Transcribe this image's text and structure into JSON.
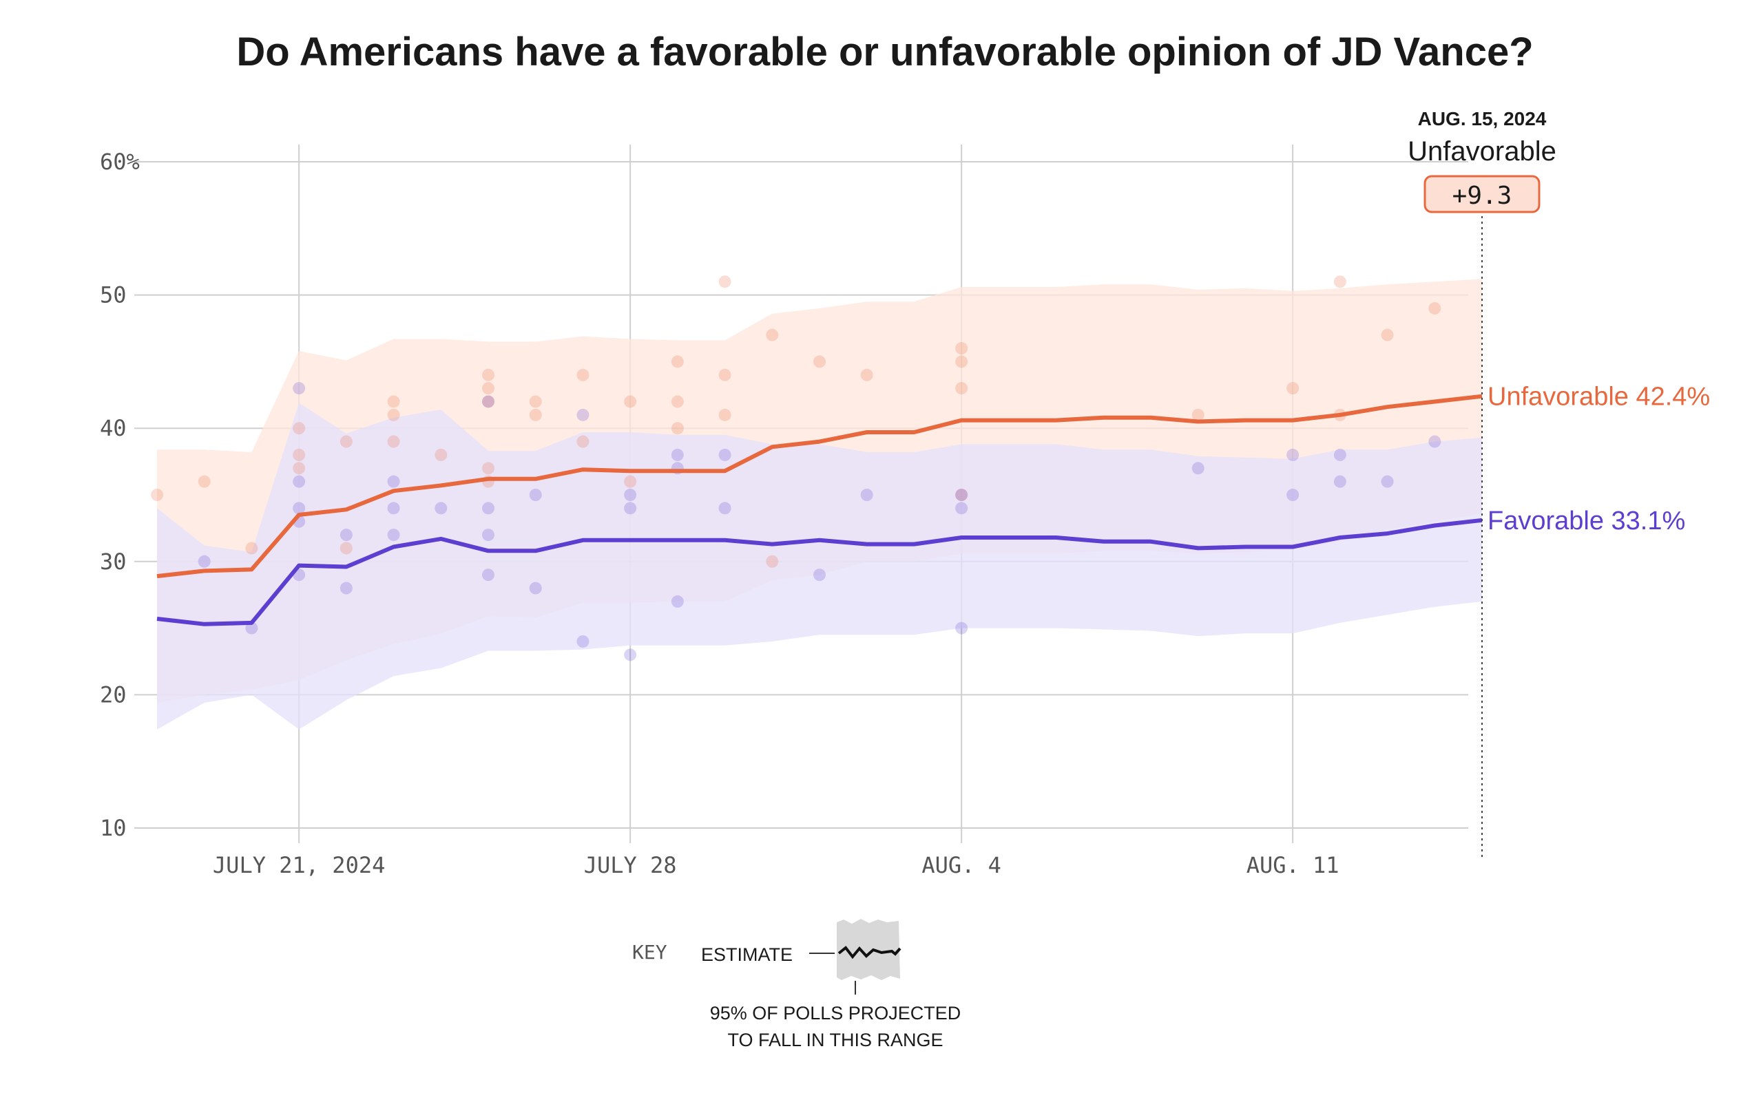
{
  "chart_data": {
    "type": "line",
    "title": "Do Americans have a favorable or unfavorable opinion of JD Vance?",
    "xlabel": "",
    "ylabel": "",
    "y_unit": "%",
    "ylim": [
      10,
      60
    ],
    "yticks": [
      {
        "value": 60,
        "label": "60%"
      },
      {
        "value": 50,
        "label": "50"
      },
      {
        "value": 40,
        "label": "40"
      },
      {
        "value": 30,
        "label": "30"
      },
      {
        "value": 20,
        "label": "20"
      },
      {
        "value": 10,
        "label": "10"
      }
    ],
    "xlim": [
      "2024-07-18",
      "2024-08-15"
    ],
    "xticks": [
      {
        "date": "2024-07-21",
        "label": "JULY 21, 2024"
      },
      {
        "date": "2024-07-28",
        "label": "JULY 28"
      },
      {
        "date": "2024-08-04",
        "label": "AUG. 4"
      },
      {
        "date": "2024-08-11",
        "label": "AUG. 11"
      }
    ],
    "grid": true,
    "x": [
      "2024-07-18",
      "2024-07-19",
      "2024-07-20",
      "2024-07-21",
      "2024-07-22",
      "2024-07-23",
      "2024-07-24",
      "2024-07-25",
      "2024-07-26",
      "2024-07-27",
      "2024-07-28",
      "2024-07-29",
      "2024-07-30",
      "2024-07-31",
      "2024-08-01",
      "2024-08-02",
      "2024-08-03",
      "2024-08-04",
      "2024-08-05",
      "2024-08-06",
      "2024-08-07",
      "2024-08-08",
      "2024-08-09",
      "2024-08-10",
      "2024-08-11",
      "2024-08-12",
      "2024-08-13",
      "2024-08-14",
      "2024-08-15"
    ],
    "series": [
      {
        "name": "Unfavorable",
        "color": "#e8683e",
        "band_color": "#fde5dc",
        "estimate": [
          28.9,
          29.3,
          29.4,
          33.5,
          33.9,
          35.3,
          35.7,
          36.2,
          36.2,
          36.9,
          36.8,
          36.8,
          36.8,
          38.6,
          39.0,
          39.7,
          39.7,
          40.6,
          40.6,
          40.6,
          40.8,
          40.8,
          40.5,
          40.6,
          40.6,
          41.0,
          41.6,
          42.0,
          42.4
        ],
        "band_upper": [
          38.4,
          38.4,
          38.2,
          45.8,
          45.1,
          46.7,
          46.7,
          46.5,
          46.5,
          46.9,
          46.7,
          46.6,
          46.6,
          48.6,
          49.0,
          49.5,
          49.5,
          50.6,
          50.6,
          50.6,
          50.8,
          50.8,
          50.4,
          50.5,
          50.3,
          50.5,
          50.8,
          51.0,
          51.2
        ],
        "band_lower": [
          19.4,
          20.0,
          20.4,
          21.1,
          22.6,
          23.8,
          24.6,
          25.9,
          25.8,
          26.9,
          26.9,
          27.0,
          27.0,
          28.6,
          29.0,
          30.0,
          30.0,
          30.6,
          30.6,
          30.6,
          30.8,
          30.8,
          30.6,
          30.7,
          30.9,
          31.5,
          32.4,
          33.0,
          33.6
        ],
        "polls": [
          {
            "date": "2024-07-18",
            "value": 35
          },
          {
            "date": "2024-07-19",
            "value": 36
          },
          {
            "date": "2024-07-20",
            "value": 31
          },
          {
            "date": "2024-07-21",
            "value": 40
          },
          {
            "date": "2024-07-21",
            "value": 38
          },
          {
            "date": "2024-07-21",
            "value": 37
          },
          {
            "date": "2024-07-22",
            "value": 39
          },
          {
            "date": "2024-07-22",
            "value": 31
          },
          {
            "date": "2024-07-23",
            "value": 42
          },
          {
            "date": "2024-07-23",
            "value": 41
          },
          {
            "date": "2024-07-23",
            "value": 39
          },
          {
            "date": "2024-07-24",
            "value": 38
          },
          {
            "date": "2024-07-25",
            "value": 44
          },
          {
            "date": "2024-07-25",
            "value": 43
          },
          {
            "date": "2024-07-25",
            "value": 42
          },
          {
            "date": "2024-07-25",
            "value": 37
          },
          {
            "date": "2024-07-25",
            "value": 36
          },
          {
            "date": "2024-07-26",
            "value": 42
          },
          {
            "date": "2024-07-26",
            "value": 41
          },
          {
            "date": "2024-07-27",
            "value": 44
          },
          {
            "date": "2024-07-27",
            "value": 39
          },
          {
            "date": "2024-07-28",
            "value": 42
          },
          {
            "date": "2024-07-28",
            "value": 36
          },
          {
            "date": "2024-07-29",
            "value": 45
          },
          {
            "date": "2024-07-29",
            "value": 42
          },
          {
            "date": "2024-07-29",
            "value": 40
          },
          {
            "date": "2024-07-30",
            "value": 51
          },
          {
            "date": "2024-07-30",
            "value": 44
          },
          {
            "date": "2024-07-30",
            "value": 41
          },
          {
            "date": "2024-07-31",
            "value": 47
          },
          {
            "date": "2024-07-31",
            "value": 30
          },
          {
            "date": "2024-08-01",
            "value": 45
          },
          {
            "date": "2024-08-02",
            "value": 44
          },
          {
            "date": "2024-08-04",
            "value": 46
          },
          {
            "date": "2024-08-04",
            "value": 45
          },
          {
            "date": "2024-08-04",
            "value": 43
          },
          {
            "date": "2024-08-04",
            "value": 35
          },
          {
            "date": "2024-08-09",
            "value": 41
          },
          {
            "date": "2024-08-11",
            "value": 43
          },
          {
            "date": "2024-08-12",
            "value": 51
          },
          {
            "date": "2024-08-12",
            "value": 41
          },
          {
            "date": "2024-08-13",
            "value": 47
          },
          {
            "date": "2024-08-14",
            "value": 49
          }
        ]
      },
      {
        "name": "Favorable",
        "color": "#5c3fd0",
        "band_color": "#e4e0fb",
        "estimate": [
          25.7,
          25.3,
          25.4,
          29.7,
          29.6,
          31.1,
          31.7,
          30.8,
          30.8,
          31.6,
          31.6,
          31.6,
          31.6,
          31.3,
          31.6,
          31.3,
          31.3,
          31.8,
          31.8,
          31.8,
          31.5,
          31.5,
          31.0,
          31.1,
          31.1,
          31.8,
          32.1,
          32.7,
          33.1
        ],
        "band_upper": [
          34.0,
          31.2,
          30.7,
          41.9,
          39.6,
          40.8,
          41.4,
          38.3,
          38.3,
          39.7,
          39.7,
          39.5,
          39.5,
          38.8,
          38.8,
          38.2,
          38.2,
          38.8,
          38.8,
          38.8,
          38.4,
          38.4,
          37.9,
          37.8,
          37.7,
          38.4,
          38.4,
          39.0,
          39.3
        ],
        "band_lower": [
          17.4,
          19.4,
          20.0,
          17.4,
          19.6,
          21.4,
          22.0,
          23.3,
          23.3,
          23.4,
          23.7,
          23.7,
          23.7,
          24.0,
          24.5,
          24.5,
          24.5,
          25.0,
          25.0,
          25.0,
          24.9,
          24.8,
          24.4,
          24.6,
          24.6,
          25.4,
          26.0,
          26.6,
          27.0
        ],
        "polls": [
          {
            "date": "2024-07-19",
            "value": 30
          },
          {
            "date": "2024-07-20",
            "value": 25
          },
          {
            "date": "2024-07-21",
            "value": 43
          },
          {
            "date": "2024-07-21",
            "value": 36
          },
          {
            "date": "2024-07-21",
            "value": 34
          },
          {
            "date": "2024-07-21",
            "value": 33
          },
          {
            "date": "2024-07-21",
            "value": 29
          },
          {
            "date": "2024-07-22",
            "value": 32
          },
          {
            "date": "2024-07-22",
            "value": 28
          },
          {
            "date": "2024-07-23",
            "value": 36
          },
          {
            "date": "2024-07-23",
            "value": 34
          },
          {
            "date": "2024-07-23",
            "value": 32
          },
          {
            "date": "2024-07-24",
            "value": 34
          },
          {
            "date": "2024-07-25",
            "value": 42
          },
          {
            "date": "2024-07-25",
            "value": 34
          },
          {
            "date": "2024-07-25",
            "value": 32
          },
          {
            "date": "2024-07-25",
            "value": 29
          },
          {
            "date": "2024-07-26",
            "value": 35
          },
          {
            "date": "2024-07-26",
            "value": 28
          },
          {
            "date": "2024-07-27",
            "value": 41
          },
          {
            "date": "2024-07-27",
            "value": 24
          },
          {
            "date": "2024-07-28",
            "value": 35
          },
          {
            "date": "2024-07-28",
            "value": 34
          },
          {
            "date": "2024-07-28",
            "value": 23
          },
          {
            "date": "2024-07-29",
            "value": 38
          },
          {
            "date": "2024-07-29",
            "value": 37
          },
          {
            "date": "2024-07-29",
            "value": 27
          },
          {
            "date": "2024-07-30",
            "value": 38
          },
          {
            "date": "2024-07-30",
            "value": 34
          },
          {
            "date": "2024-08-01",
            "value": 29
          },
          {
            "date": "2024-08-02",
            "value": 35
          },
          {
            "date": "2024-08-04",
            "value": 35
          },
          {
            "date": "2024-08-04",
            "value": 34
          },
          {
            "date": "2024-08-04",
            "value": 25
          },
          {
            "date": "2024-08-09",
            "value": 37
          },
          {
            "date": "2024-08-11",
            "value": 38
          },
          {
            "date": "2024-08-11",
            "value": 35
          },
          {
            "date": "2024-08-12",
            "value": 38
          },
          {
            "date": "2024-08-12",
            "value": 36
          },
          {
            "date": "2024-08-13",
            "value": 36
          },
          {
            "date": "2024-08-14",
            "value": 39
          }
        ]
      }
    ],
    "end_labels": [
      {
        "text": "Unfavorable 42.4%",
        "series": "Unfavorable"
      },
      {
        "text": "Favorable 33.1%",
        "series": "Favorable"
      }
    ],
    "annotation": {
      "date_label": "AUG. 15, 2024",
      "label": "Unfavorable",
      "value": "+9.3"
    },
    "key": {
      "title": "KEY",
      "estimate_label": "ESTIMATE",
      "range_line1": "95% OF POLLS PROJECTED",
      "range_line2": "TO FALL IN THIS RANGE"
    }
  }
}
